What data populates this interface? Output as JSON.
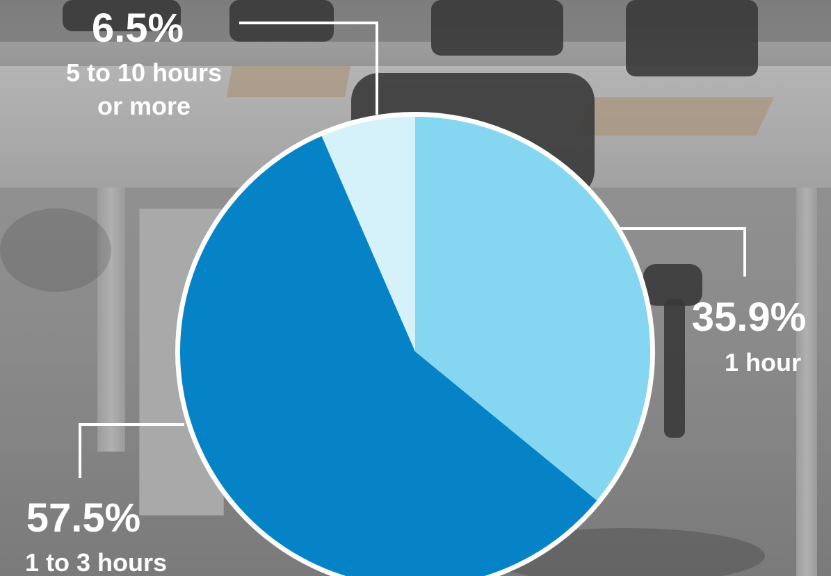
{
  "chart_data": {
    "type": "pie",
    "slices": [
      {
        "percent_label": "35.9%",
        "category": "1 hour",
        "value": 35.9,
        "color": "#84d6f1"
      },
      {
        "percent_label": "57.5%",
        "category": "1 to 3 hours",
        "value": 57.5,
        "color": "#0683c7"
      },
      {
        "percent_label": "6.5%",
        "category_lines": [
          "5 to 10 hours",
          "or more"
        ],
        "value": 6.5,
        "color": "#d5f2fb"
      }
    ],
    "start_angle_deg": 0,
    "direction": "clockwise",
    "border_color": "#ffffff",
    "label_color": "#ffffff",
    "leader_line_color": "#ffffff"
  }
}
